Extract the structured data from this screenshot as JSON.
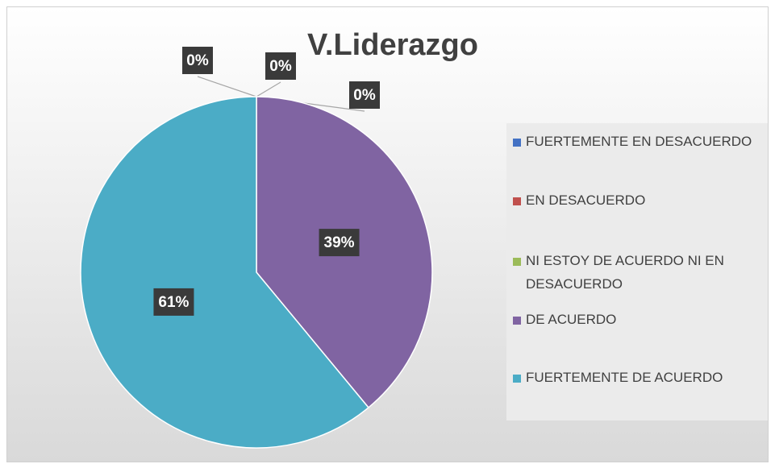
{
  "chart_data": {
    "type": "pie",
    "title": "V.Liderazgo",
    "categories": [
      "FUERTEMENTE EN DESACUERDO",
      "EN DESACUERDO",
      "NI ESTOY DE ACUERDO NI EN DESACUERDO",
      "DE ACUERDO",
      "FUERTEMENTE DE ACUERDO"
    ],
    "values": [
      0,
      0,
      0,
      39,
      61
    ],
    "value_labels": [
      "0%",
      "0%",
      "0%",
      "39%",
      "61%"
    ],
    "colors": [
      "#4472c4",
      "#c0504d",
      "#9bbb59",
      "#8064a2",
      "#4bacc6"
    ],
    "legend": "right"
  }
}
